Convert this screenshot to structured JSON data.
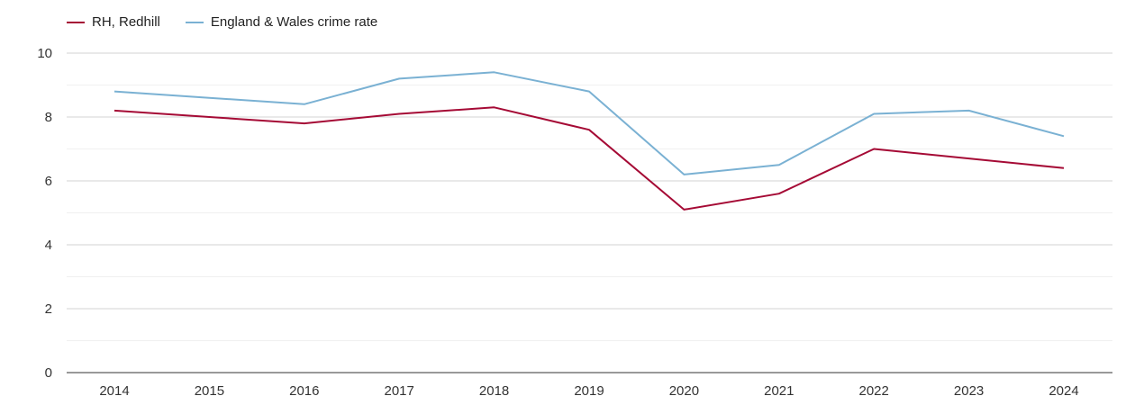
{
  "chart_data": {
    "type": "line",
    "title": "",
    "xlabel": "",
    "ylabel": "",
    "categories": [
      "2014",
      "2015",
      "2016",
      "2017",
      "2018",
      "2019",
      "2020",
      "2021",
      "2022",
      "2023",
      "2024"
    ],
    "ylim": [
      0,
      10
    ],
    "yticks": [
      0,
      2,
      4,
      6,
      8,
      10
    ],
    "grid": true,
    "legend_position": "top-left",
    "series": [
      {
        "name": "RH, Redhill",
        "color": "#a50a35",
        "values": [
          8.2,
          8.0,
          7.8,
          8.1,
          8.3,
          7.6,
          5.1,
          5.6,
          7.0,
          6.7,
          6.4
        ]
      },
      {
        "name": "England & Wales crime rate",
        "color": "#7ab1d3",
        "values": [
          8.8,
          8.6,
          8.4,
          9.2,
          9.4,
          8.8,
          6.2,
          6.5,
          8.1,
          8.2,
          7.4
        ]
      }
    ]
  }
}
